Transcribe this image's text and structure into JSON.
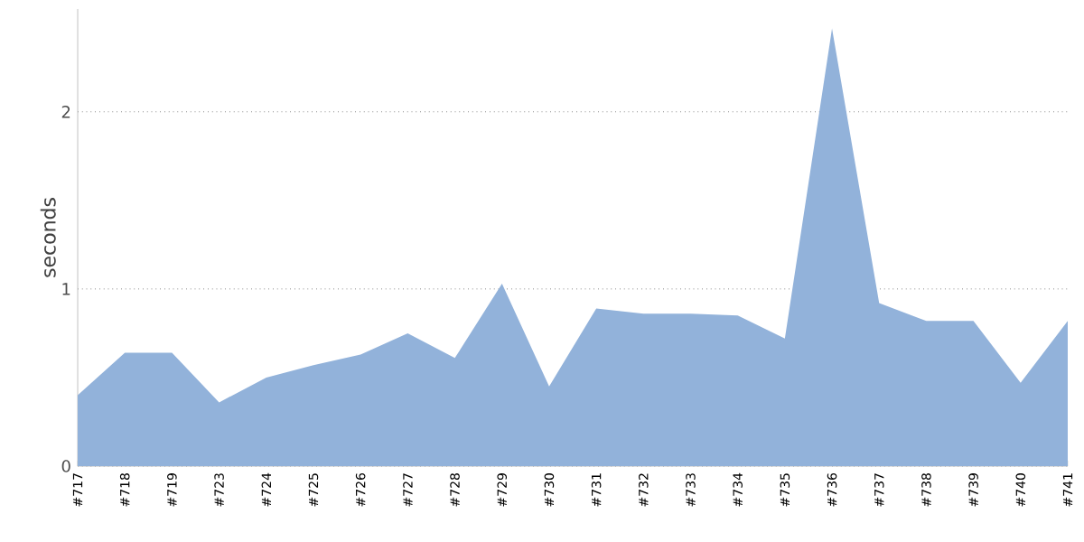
{
  "chart_data": {
    "type": "area",
    "ylabel": "seconds",
    "categories": [
      "#717",
      "#718",
      "#719",
      "#723",
      "#724",
      "#725",
      "#726",
      "#727",
      "#728",
      "#729",
      "#730",
      "#731",
      "#732",
      "#733",
      "#734",
      "#735",
      "#736",
      "#737",
      "#738",
      "#739",
      "#740",
      "#741"
    ],
    "values": [
      0.4,
      0.64,
      0.64,
      0.36,
      0.5,
      0.57,
      0.63,
      0.75,
      0.61,
      1.03,
      0.45,
      0.89,
      0.86,
      0.86,
      0.85,
      0.72,
      2.47,
      0.92,
      0.82,
      0.82,
      0.47,
      0.82
    ],
    "color": "#92b2da",
    "ylim": [
      0,
      2.58
    ],
    "yticks": [
      0,
      1,
      2
    ],
    "grid": "y"
  }
}
